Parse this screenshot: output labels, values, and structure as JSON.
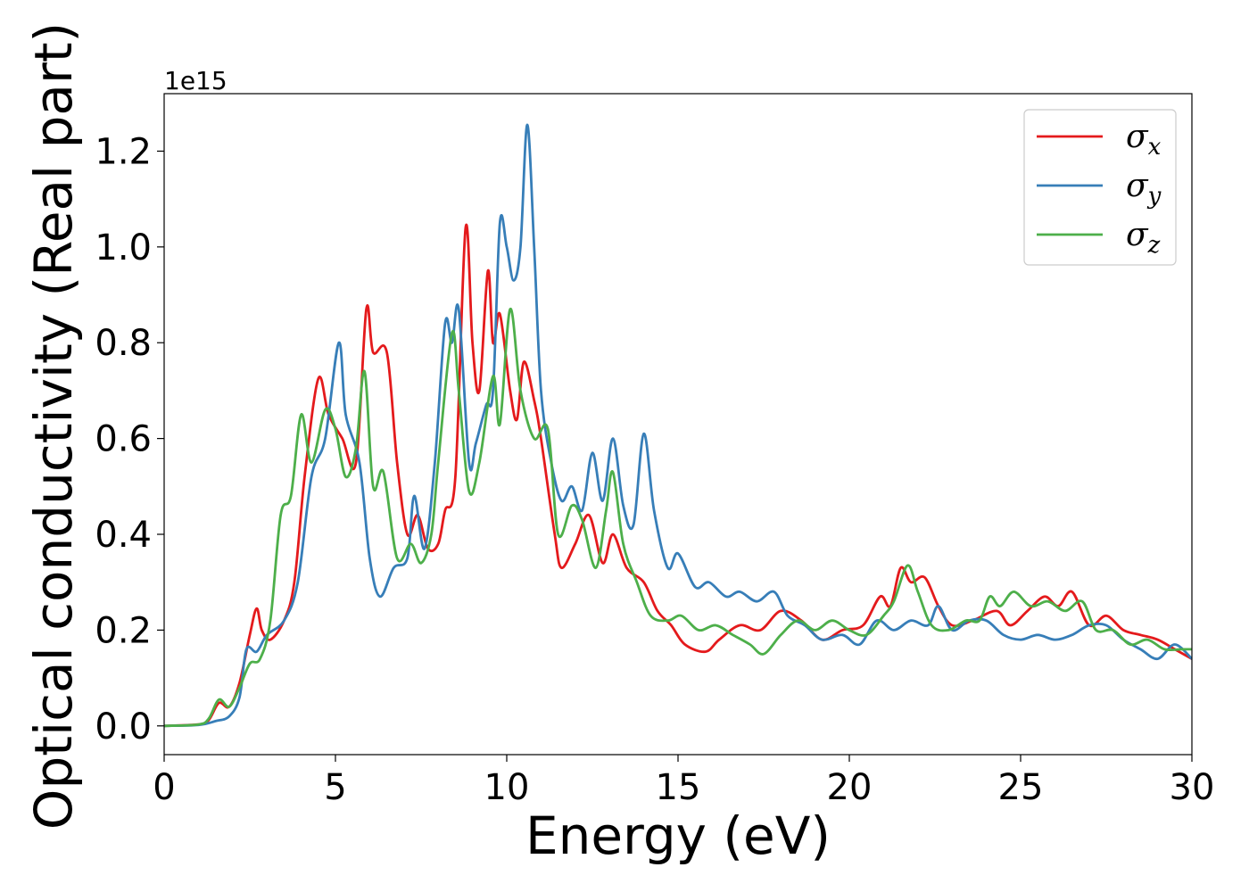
{
  "chart_data": {
    "type": "line",
    "title": "",
    "xlabel": "Energy (eV)",
    "ylabel": "Optical conductivity (Real part)",
    "y_offset_label": "1e15",
    "xlim": [
      0,
      30
    ],
    "ylim": [
      -0.06,
      1.32
    ],
    "xticks": [
      0,
      5,
      10,
      15,
      20,
      25,
      30
    ],
    "yticks": [
      0.0,
      0.2,
      0.4,
      0.6,
      0.8,
      1.0,
      1.2
    ],
    "xtick_labels": [
      "0",
      "5",
      "10",
      "15",
      "20",
      "25",
      "30"
    ],
    "ytick_labels": [
      "0.0",
      "0.2",
      "0.4",
      "0.6",
      "0.8",
      "1.0",
      "1.2"
    ],
    "grid": false,
    "legend_position": "upper right",
    "series": [
      {
        "name": "σx",
        "legend_symbol": "σ",
        "legend_sub": "x",
        "color": "#e41a1c",
        "points": [
          [
            0,
            0
          ],
          [
            1,
            0.003
          ],
          [
            1.3,
            0.012
          ],
          [
            1.6,
            0.048
          ],
          [
            1.9,
            0.04
          ],
          [
            2.2,
            0.09
          ],
          [
            2.5,
            0.19
          ],
          [
            2.7,
            0.245
          ],
          [
            2.85,
            0.2
          ],
          [
            3.1,
            0.18
          ],
          [
            3.5,
            0.22
          ],
          [
            3.8,
            0.3
          ],
          [
            4.1,
            0.52
          ],
          [
            4.5,
            0.725
          ],
          [
            4.8,
            0.65
          ],
          [
            5.2,
            0.6
          ],
          [
            5.6,
            0.55
          ],
          [
            5.9,
            0.87
          ],
          [
            6.1,
            0.78
          ],
          [
            6.5,
            0.78
          ],
          [
            6.8,
            0.55
          ],
          [
            7.1,
            0.4
          ],
          [
            7.4,
            0.44
          ],
          [
            7.7,
            0.37
          ],
          [
            8,
            0.38
          ],
          [
            8.2,
            0.45
          ],
          [
            8.5,
            0.52
          ],
          [
            8.8,
            1.04
          ],
          [
            9.0,
            0.8
          ],
          [
            9.2,
            0.7
          ],
          [
            9.45,
            0.95
          ],
          [
            9.6,
            0.8
          ],
          [
            9.8,
            0.86
          ],
          [
            10.1,
            0.7
          ],
          [
            10.3,
            0.64
          ],
          [
            10.5,
            0.76
          ],
          [
            10.8,
            0.68
          ],
          [
            11.0,
            0.6
          ],
          [
            11.4,
            0.4
          ],
          [
            11.6,
            0.33
          ],
          [
            12,
            0.38
          ],
          [
            12.4,
            0.44
          ],
          [
            12.8,
            0.34
          ],
          [
            13.1,
            0.4
          ],
          [
            13.5,
            0.33
          ],
          [
            14,
            0.3
          ],
          [
            14.4,
            0.24
          ],
          [
            14.8,
            0.21
          ],
          [
            15.2,
            0.17
          ],
          [
            15.8,
            0.155
          ],
          [
            16.2,
            0.18
          ],
          [
            16.8,
            0.21
          ],
          [
            17.4,
            0.2
          ],
          [
            18,
            0.24
          ],
          [
            18.6,
            0.22
          ],
          [
            19.2,
            0.18
          ],
          [
            19.8,
            0.2
          ],
          [
            20.4,
            0.21
          ],
          [
            20.9,
            0.27
          ],
          [
            21.2,
            0.25
          ],
          [
            21.5,
            0.33
          ],
          [
            21.8,
            0.3
          ],
          [
            22.2,
            0.31
          ],
          [
            22.6,
            0.25
          ],
          [
            23,
            0.21
          ],
          [
            23.6,
            0.22
          ],
          [
            24.3,
            0.24
          ],
          [
            24.7,
            0.21
          ],
          [
            25.2,
            0.24
          ],
          [
            25.7,
            0.27
          ],
          [
            26.1,
            0.25
          ],
          [
            26.5,
            0.28
          ],
          [
            27,
            0.21
          ],
          [
            27.5,
            0.23
          ],
          [
            28,
            0.2
          ],
          [
            28.5,
            0.19
          ],
          [
            29,
            0.18
          ],
          [
            29.5,
            0.16
          ],
          [
            30,
            0.14
          ]
        ]
      },
      {
        "name": "σy",
        "legend_symbol": "σ",
        "legend_sub": "y",
        "color": "#377eb8",
        "points": [
          [
            0,
            0
          ],
          [
            1,
            0.002
          ],
          [
            1.5,
            0.01
          ],
          [
            1.9,
            0.02
          ],
          [
            2.2,
            0.06
          ],
          [
            2.4,
            0.16
          ],
          [
            2.7,
            0.155
          ],
          [
            3.0,
            0.19
          ],
          [
            3.5,
            0.22
          ],
          [
            3.9,
            0.3
          ],
          [
            4.3,
            0.52
          ],
          [
            4.7,
            0.6
          ],
          [
            5.1,
            0.8
          ],
          [
            5.3,
            0.65
          ],
          [
            5.7,
            0.55
          ],
          [
            6.0,
            0.35
          ],
          [
            6.3,
            0.27
          ],
          [
            6.7,
            0.33
          ],
          [
            7.1,
            0.35
          ],
          [
            7.3,
            0.48
          ],
          [
            7.6,
            0.37
          ],
          [
            7.9,
            0.55
          ],
          [
            8.2,
            0.84
          ],
          [
            8.4,
            0.8
          ],
          [
            8.6,
            0.87
          ],
          [
            8.9,
            0.55
          ],
          [
            9.1,
            0.59
          ],
          [
            9.4,
            0.67
          ],
          [
            9.6,
            0.7
          ],
          [
            9.8,
            1.05
          ],
          [
            10.0,
            1.0
          ],
          [
            10.2,
            0.93
          ],
          [
            10.4,
            1.0
          ],
          [
            10.6,
            1.255
          ],
          [
            10.8,
            1.0
          ],
          [
            11.0,
            0.7
          ],
          [
            11.3,
            0.55
          ],
          [
            11.6,
            0.47
          ],
          [
            11.9,
            0.5
          ],
          [
            12.2,
            0.45
          ],
          [
            12.5,
            0.57
          ],
          [
            12.8,
            0.47
          ],
          [
            13.1,
            0.6
          ],
          [
            13.4,
            0.46
          ],
          [
            13.7,
            0.42
          ],
          [
            14.0,
            0.61
          ],
          [
            14.3,
            0.45
          ],
          [
            14.7,
            0.33
          ],
          [
            15.0,
            0.36
          ],
          [
            15.5,
            0.29
          ],
          [
            15.9,
            0.3
          ],
          [
            16.4,
            0.27
          ],
          [
            16.8,
            0.28
          ],
          [
            17.3,
            0.26
          ],
          [
            17.8,
            0.28
          ],
          [
            18.2,
            0.23
          ],
          [
            18.7,
            0.21
          ],
          [
            19.2,
            0.18
          ],
          [
            19.8,
            0.19
          ],
          [
            20.3,
            0.17
          ],
          [
            20.8,
            0.22
          ],
          [
            21.3,
            0.2
          ],
          [
            21.8,
            0.22
          ],
          [
            22.3,
            0.21
          ],
          [
            22.6,
            0.25
          ],
          [
            23.0,
            0.2
          ],
          [
            23.5,
            0.22
          ],
          [
            24.0,
            0.22
          ],
          [
            24.5,
            0.19
          ],
          [
            25.0,
            0.18
          ],
          [
            25.5,
            0.19
          ],
          [
            26.0,
            0.18
          ],
          [
            26.5,
            0.19
          ],
          [
            27.0,
            0.21
          ],
          [
            27.5,
            0.21
          ],
          [
            28.0,
            0.18
          ],
          [
            28.5,
            0.16
          ],
          [
            29.0,
            0.14
          ],
          [
            29.5,
            0.17
          ],
          [
            30,
            0.14
          ]
        ]
      },
      {
        "name": "σz",
        "legend_symbol": "σ",
        "legend_sub": "z",
        "color": "#4daf4a",
        "points": [
          [
            0,
            0
          ],
          [
            1,
            0.003
          ],
          [
            1.3,
            0.015
          ],
          [
            1.6,
            0.055
          ],
          [
            1.9,
            0.04
          ],
          [
            2.2,
            0.08
          ],
          [
            2.5,
            0.13
          ],
          [
            2.8,
            0.14
          ],
          [
            3.1,
            0.22
          ],
          [
            3.4,
            0.44
          ],
          [
            3.7,
            0.48
          ],
          [
            4.0,
            0.65
          ],
          [
            4.3,
            0.55
          ],
          [
            4.7,
            0.66
          ],
          [
            5.0,
            0.62
          ],
          [
            5.3,
            0.52
          ],
          [
            5.6,
            0.58
          ],
          [
            5.85,
            0.74
          ],
          [
            6.1,
            0.5
          ],
          [
            6.4,
            0.53
          ],
          [
            6.8,
            0.35
          ],
          [
            7.2,
            0.38
          ],
          [
            7.5,
            0.34
          ],
          [
            7.8,
            0.4
          ],
          [
            8.0,
            0.55
          ],
          [
            8.4,
            0.82
          ],
          [
            8.6,
            0.7
          ],
          [
            8.9,
            0.49
          ],
          [
            9.2,
            0.55
          ],
          [
            9.6,
            0.73
          ],
          [
            9.8,
            0.63
          ],
          [
            10.1,
            0.87
          ],
          [
            10.4,
            0.7
          ],
          [
            10.8,
            0.6
          ],
          [
            11.2,
            0.62
          ],
          [
            11.5,
            0.4
          ],
          [
            11.9,
            0.46
          ],
          [
            12.2,
            0.43
          ],
          [
            12.6,
            0.33
          ],
          [
            12.9,
            0.45
          ],
          [
            13.1,
            0.53
          ],
          [
            13.4,
            0.38
          ],
          [
            13.8,
            0.3
          ],
          [
            14.2,
            0.23
          ],
          [
            14.7,
            0.22
          ],
          [
            15.1,
            0.23
          ],
          [
            15.6,
            0.2
          ],
          [
            16.1,
            0.21
          ],
          [
            16.6,
            0.19
          ],
          [
            17.1,
            0.17
          ],
          [
            17.5,
            0.15
          ],
          [
            18.0,
            0.19
          ],
          [
            18.5,
            0.22
          ],
          [
            19.0,
            0.2
          ],
          [
            19.5,
            0.22
          ],
          [
            20.0,
            0.2
          ],
          [
            20.5,
            0.19
          ],
          [
            21.0,
            0.23
          ],
          [
            21.3,
            0.26
          ],
          [
            21.7,
            0.335
          ],
          [
            22.0,
            0.28
          ],
          [
            22.4,
            0.21
          ],
          [
            22.9,
            0.2
          ],
          [
            23.4,
            0.22
          ],
          [
            23.8,
            0.22
          ],
          [
            24.1,
            0.27
          ],
          [
            24.4,
            0.25
          ],
          [
            24.8,
            0.28
          ],
          [
            25.3,
            0.25
          ],
          [
            25.8,
            0.26
          ],
          [
            26.3,
            0.24
          ],
          [
            26.8,
            0.26
          ],
          [
            27.2,
            0.2
          ],
          [
            27.7,
            0.2
          ],
          [
            28.2,
            0.17
          ],
          [
            28.7,
            0.18
          ],
          [
            29.2,
            0.16
          ],
          [
            29.7,
            0.16
          ],
          [
            30,
            0.16
          ]
        ]
      }
    ]
  }
}
